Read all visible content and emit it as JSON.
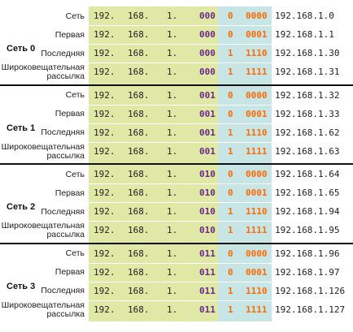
{
  "groups": [
    {
      "label": "Сеть 0",
      "rows": [
        {
          "name": "Сеть",
          "octets": [
            "192.",
            "168.",
            "1."
          ],
          "subnet_bits": "000",
          "host_bit": "0",
          "host_bits": "0000",
          "address": "192.168.1.0"
        },
        {
          "name": "Первая",
          "octets": [
            "192.",
            "168.",
            "1."
          ],
          "subnet_bits": "000",
          "host_bit": "0",
          "host_bits": "0001",
          "address": "192.168.1.1"
        },
        {
          "name": "Последняя",
          "octets": [
            "192.",
            "168.",
            "1."
          ],
          "subnet_bits": "000",
          "host_bit": "1",
          "host_bits": "1110",
          "address": "192.168.1.30"
        },
        {
          "name": "Широковещательная рассылка",
          "octets": [
            "192.",
            "168.",
            "1."
          ],
          "subnet_bits": "000",
          "host_bit": "1",
          "host_bits": "1111",
          "address": "192.168.1.31"
        }
      ]
    },
    {
      "label": "Сеть 1",
      "rows": [
        {
          "name": "Сеть",
          "octets": [
            "192.",
            "168.",
            "1."
          ],
          "subnet_bits": "001",
          "host_bit": "0",
          "host_bits": "0000",
          "address": "192.168.1.32"
        },
        {
          "name": "Первая",
          "octets": [
            "192.",
            "168.",
            "1."
          ],
          "subnet_bits": "001",
          "host_bit": "0",
          "host_bits": "0001",
          "address": "192.168.1.33"
        },
        {
          "name": "Последняя",
          "octets": [
            "192.",
            "168.",
            "1."
          ],
          "subnet_bits": "001",
          "host_bit": "1",
          "host_bits": "1110",
          "address": "192.168.1.62"
        },
        {
          "name": "Широковещательная рассылка",
          "octets": [
            "192.",
            "168.",
            "1."
          ],
          "subnet_bits": "001",
          "host_bit": "1",
          "host_bits": "1111",
          "address": "192.168.1.63"
        }
      ]
    },
    {
      "label": "Сеть 2",
      "rows": [
        {
          "name": "Сеть",
          "octets": [
            "192.",
            "168.",
            "1."
          ],
          "subnet_bits": "010",
          "host_bit": "0",
          "host_bits": "0000",
          "address": "192.168.1.64"
        },
        {
          "name": "Первая",
          "octets": [
            "192.",
            "168.",
            "1."
          ],
          "subnet_bits": "010",
          "host_bit": "0",
          "host_bits": "0001",
          "address": "192.168.1.65"
        },
        {
          "name": "Последняя",
          "octets": [
            "192.",
            "168.",
            "1."
          ],
          "subnet_bits": "010",
          "host_bit": "1",
          "host_bits": "1110",
          "address": "192.168.1.94"
        },
        {
          "name": "Широковещательная рассылка",
          "octets": [
            "192.",
            "168.",
            "1."
          ],
          "subnet_bits": "010",
          "host_bit": "1",
          "host_bits": "1111",
          "address": "192.168.1.95"
        }
      ]
    },
    {
      "label": "Сеть 3",
      "rows": [
        {
          "name": "Сеть",
          "octets": [
            "192.",
            "168.",
            "1."
          ],
          "subnet_bits": "011",
          "host_bit": "0",
          "host_bits": "0000",
          "address": "192.168.1.96"
        },
        {
          "name": "Первая",
          "octets": [
            "192.",
            "168.",
            "1."
          ],
          "subnet_bits": "011",
          "host_bit": "0",
          "host_bits": "0001",
          "address": "192.168.1.97"
        },
        {
          "name": "Последняя",
          "octets": [
            "192.",
            "168.",
            "1."
          ],
          "subnet_bits": "011",
          "host_bit": "1",
          "host_bits": "1110",
          "address": "192.168.1.126"
        },
        {
          "name": "Широковещательная рассылка",
          "octets": [
            "192.",
            "168.",
            "1."
          ],
          "subnet_bits": "011",
          "host_bit": "1",
          "host_bits": "1111",
          "address": "192.168.1.127"
        }
      ]
    }
  ]
}
